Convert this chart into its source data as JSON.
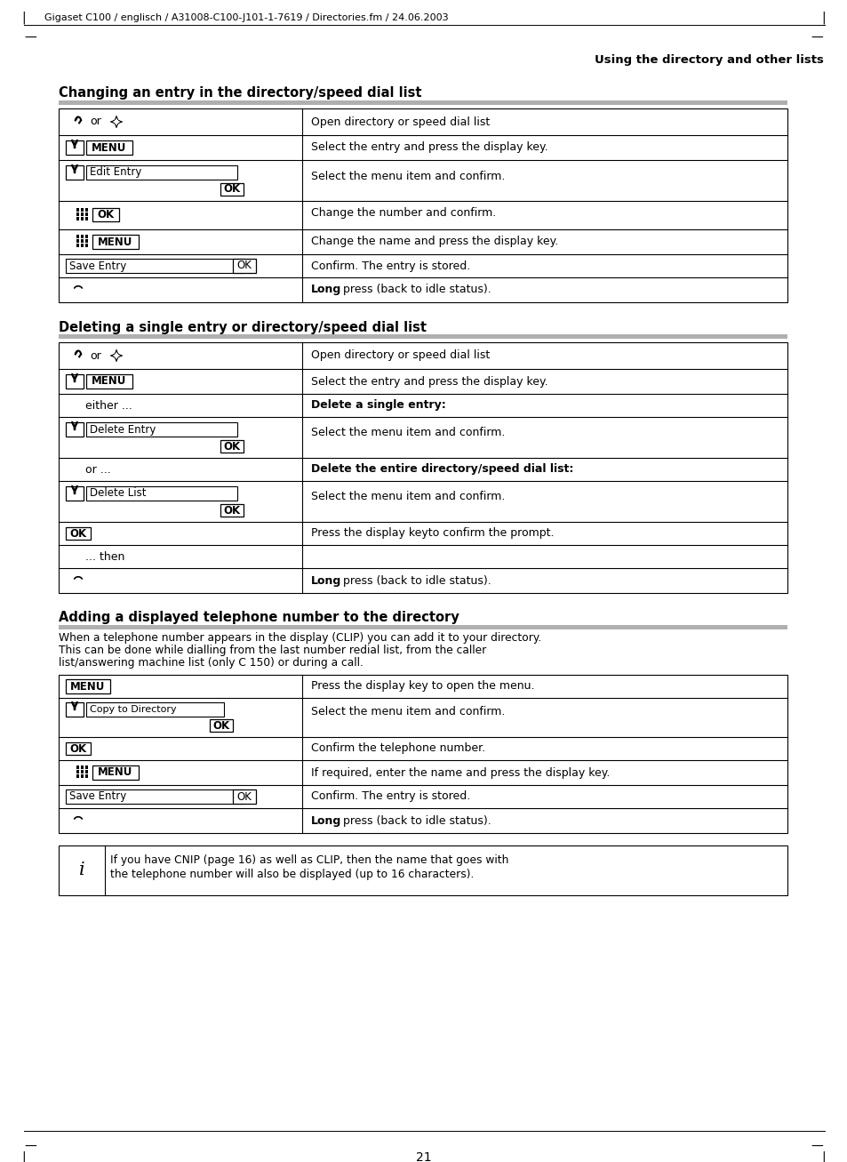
{
  "page_bg": "#ffffff",
  "header_text": "Gigaset C100 / englisch / A31008-C100-J101-1-7619 / Directories.fm / 24.06.2003",
  "right_header": "Using the directory and other lists",
  "page_number": "21",
  "section1_title": "Changing an entry in the directory/speed dial list",
  "section2_title": "Deleting a single entry or directory/speed dial list",
  "section3_title": "Adding a displayed telephone number to the directory",
  "section3_body1": "When a telephone number appears in the display (CLIP) you can add it to your directory.",
  "section3_body2": "This can be done while dialling from the last number redial list, from the caller",
  "section3_body3": "list/answering machine list (only C 150) or during a call.",
  "note_text1": "If you have CNIP (page 16) as well as CLIP, then the name that goes with",
  "note_text2": "the telephone number will also be displayed (up to 16 characters).",
  "tl": 66,
  "tr": 886,
  "col_div": 340
}
